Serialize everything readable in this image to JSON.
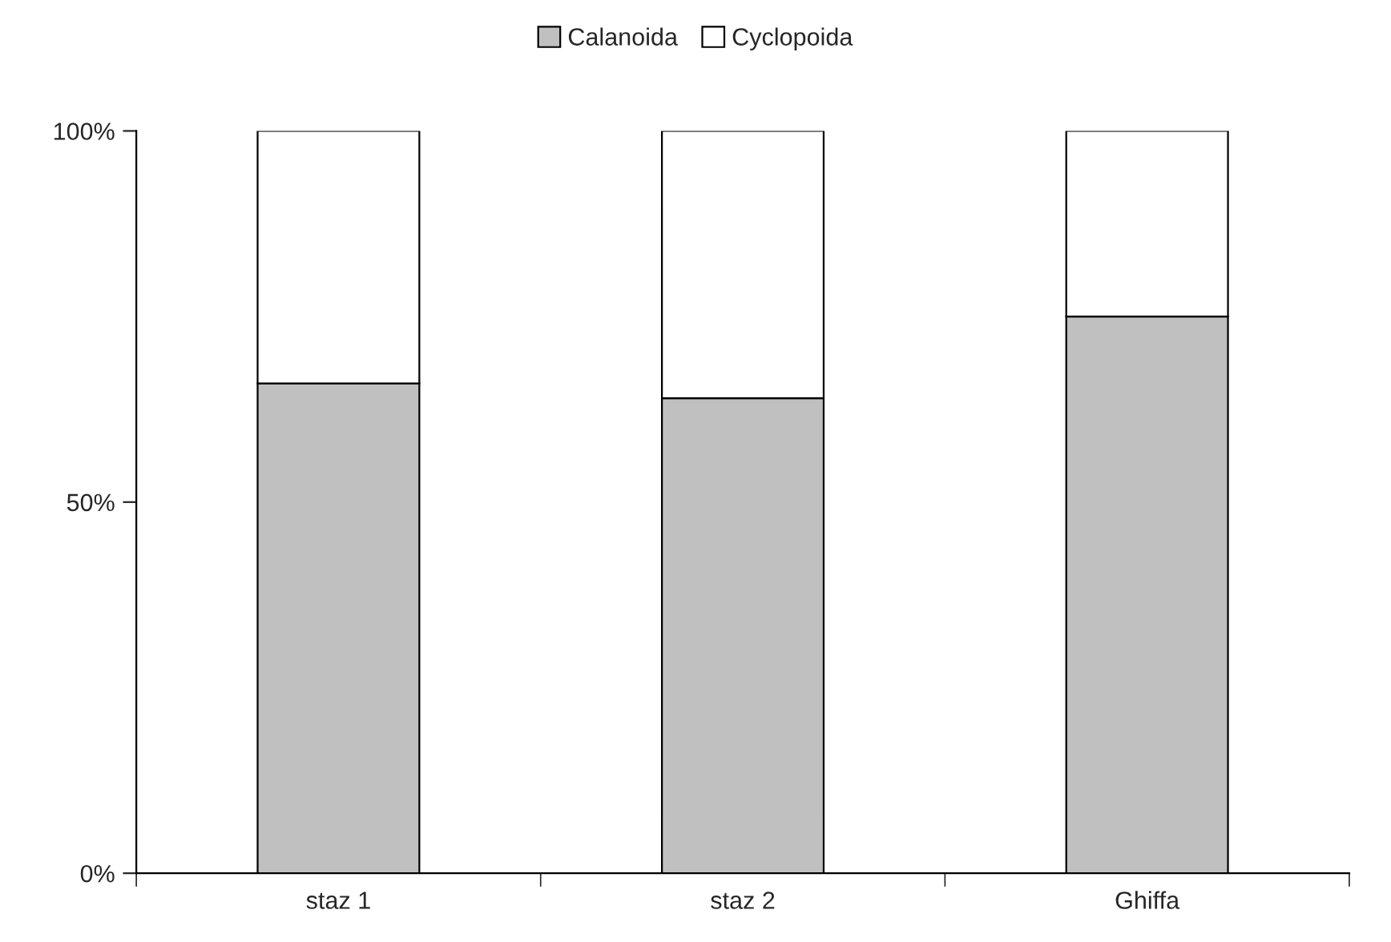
{
  "chart_data": {
    "type": "bar",
    "stacked": true,
    "categories": [
      "staz 1",
      "staz 2",
      "Ghiffa"
    ],
    "series": [
      {
        "name": "Calanoida",
        "color": "#c0c0c0",
        "values": [
          66,
          64,
          75
        ]
      },
      {
        "name": "Cyclopoida",
        "color": "#ffffff",
        "values": [
          34,
          36,
          25
        ]
      }
    ],
    "ylim": [
      0,
      100
    ],
    "yticks": [
      {
        "value": 0,
        "label": "0%"
      },
      {
        "value": 50,
        "label": "50%"
      },
      {
        "value": 100,
        "label": "100%"
      }
    ],
    "grid": false,
    "legend": "top"
  }
}
